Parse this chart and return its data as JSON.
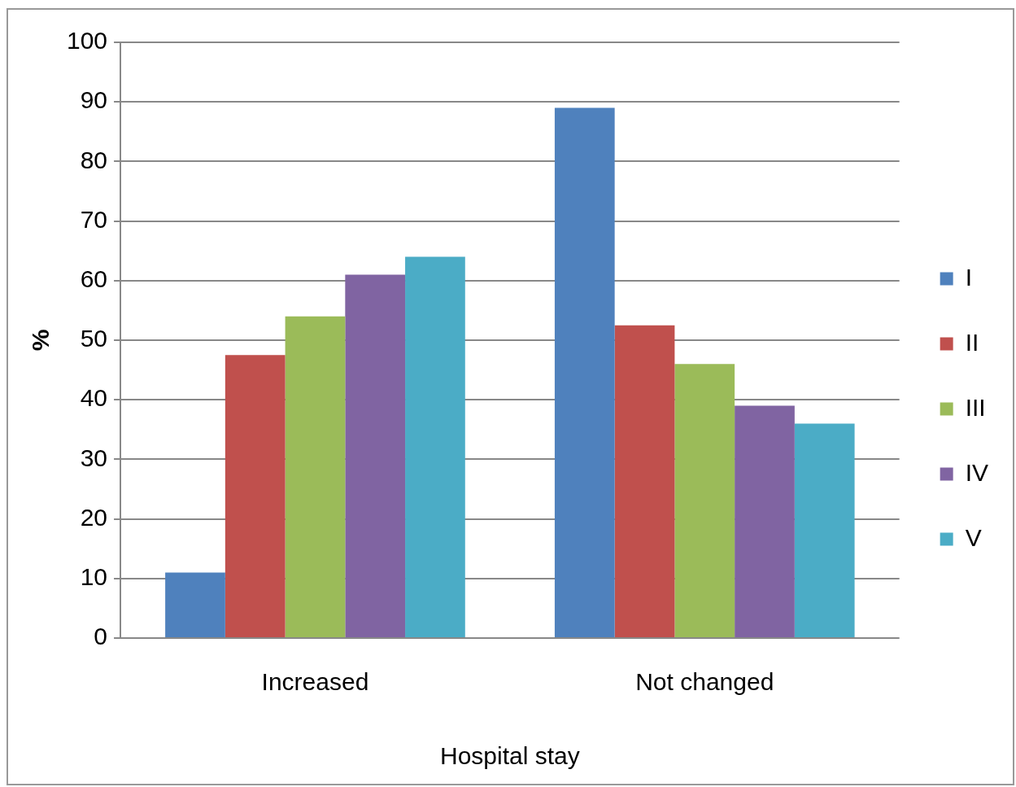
{
  "chart_data": {
    "type": "bar",
    "xlabel": "Hospital stay",
    "ylabel": "%",
    "categories": [
      "Increased",
      "Not changed"
    ],
    "series": [
      {
        "name": "I",
        "color": "#4f81bd",
        "values": [
          11,
          89
        ]
      },
      {
        "name": "II",
        "color": "#c0504d",
        "values": [
          47.5,
          52.5
        ]
      },
      {
        "name": "III",
        "color": "#9bbb59",
        "values": [
          54,
          46
        ]
      },
      {
        "name": "IV",
        "color": "#8064a2",
        "values": [
          61,
          39
        ]
      },
      {
        "name": "V",
        "color": "#4bacc6",
        "values": [
          64,
          36
        ]
      }
    ],
    "ylim": [
      0,
      100
    ],
    "yticks": [
      0,
      10,
      20,
      30,
      40,
      50,
      60,
      70,
      80,
      90,
      100
    ],
    "grid": "y",
    "legend": "right"
  }
}
